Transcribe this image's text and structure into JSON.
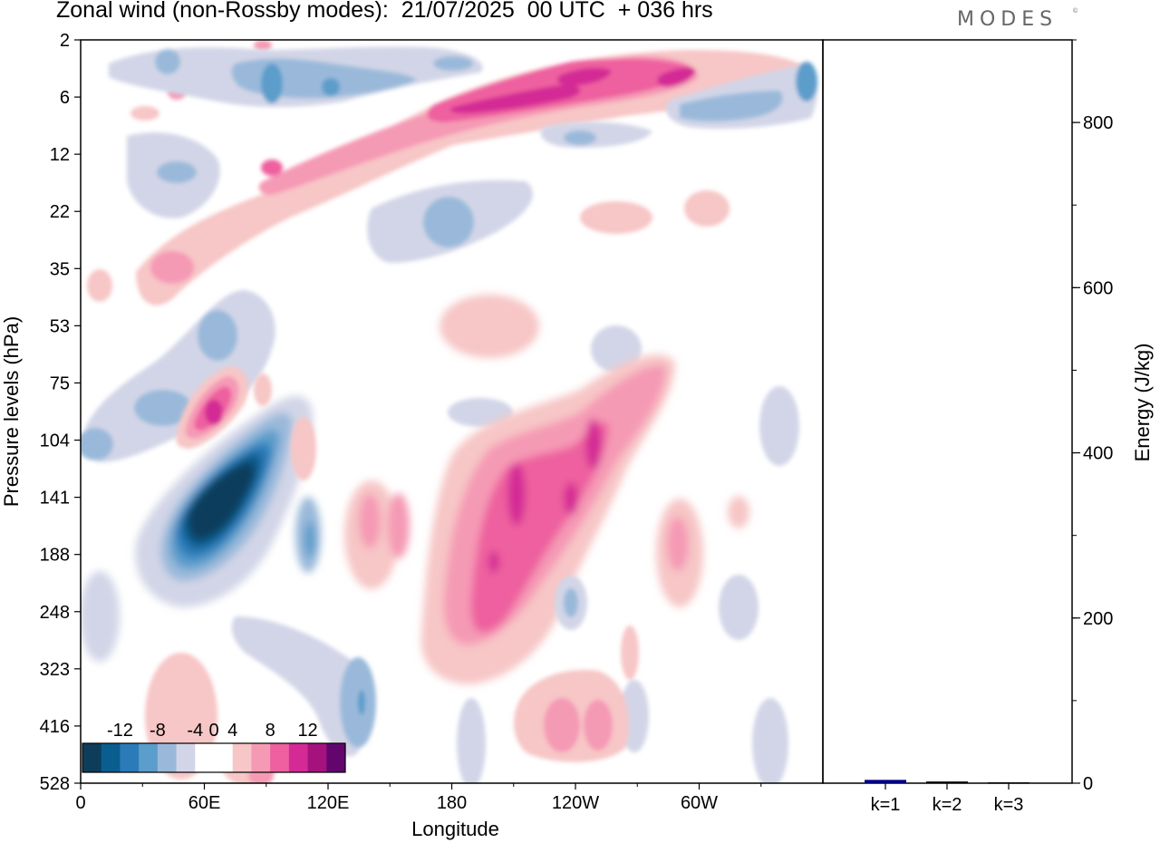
{
  "header": {
    "title": "Zonal wind (non-Rossby modes):  21/07/2025  00 UTC  + 036 hrs",
    "brand": "MODES",
    "brand_mark": "©"
  },
  "chart_data": [
    {
      "type": "heatmap",
      "title": "Zonal wind (non-Rossby modes):  21/07/2025  00 UTC  + 036 hrs",
      "xlabel": "Longitude",
      "ylabel": "Pressure levels (hPa)",
      "x_ticks": [
        "0",
        "60E",
        "120E",
        "180",
        "120W",
        "60W"
      ],
      "x_tick_degrees": [
        0,
        60,
        120,
        180,
        240,
        300
      ],
      "xlim": [
        0,
        360
      ],
      "y_ticks": [
        "2",
        "6",
        "12",
        "22",
        "35",
        "53",
        "75",
        "104",
        "141",
        "188",
        "248",
        "323",
        "416",
        "528"
      ],
      "colorbar": {
        "labels": [
          "-12",
          "-8",
          "-4",
          "0",
          "4",
          "8",
          "12"
        ],
        "levels": [
          -14,
          -12,
          -10,
          -8,
          -6,
          -4,
          -2,
          2,
          4,
          6,
          8,
          10,
          12,
          14
        ],
        "colors": [
          "#0e3d5b",
          "#0a5d8f",
          "#2b7bb9",
          "#5b9dcb",
          "#9ab9da",
          "#d2d5e7",
          "#ffffff",
          "#ffffff",
          "#f7c6c6",
          "#f59ab5",
          "#ee609f",
          "#d42a95",
          "#a5127e",
          "#62066e"
        ]
      },
      "features": [
        {
          "kind": "negative",
          "lon": 65,
          "level": "141",
          "value": -14
        },
        {
          "kind": "positive",
          "lon": 66,
          "level": "104",
          "value": 10
        },
        {
          "kind": "positive",
          "lon": 210,
          "level": "141",
          "value": 10
        },
        {
          "kind": "positive",
          "lon": 250,
          "level": "104",
          "value": 10
        },
        {
          "kind": "positive",
          "lon": 230,
          "level": "6",
          "value": 10
        },
        {
          "kind": "negative",
          "lon": 90,
          "level": "6",
          "value": -6
        },
        {
          "kind": "negative",
          "lon": 180,
          "level": "22",
          "value": -6
        },
        {
          "kind": "negative",
          "lon": 135,
          "level": "416",
          "value": -6
        }
      ]
    },
    {
      "type": "bar",
      "categories": [
        "k=1",
        "k=2",
        "k=3"
      ],
      "values": [
        4,
        2,
        1
      ],
      "ylabel": "Energy (J/kg)",
      "ylim": [
        0,
        900
      ],
      "y_ticks": [
        "0",
        "200",
        "400",
        "600",
        "800"
      ],
      "y_tick_values": [
        0,
        200,
        400,
        600,
        800
      ],
      "y_minor_step": 100,
      "bar_colors": [
        "#000080",
        "#000000",
        "#000000"
      ]
    }
  ]
}
